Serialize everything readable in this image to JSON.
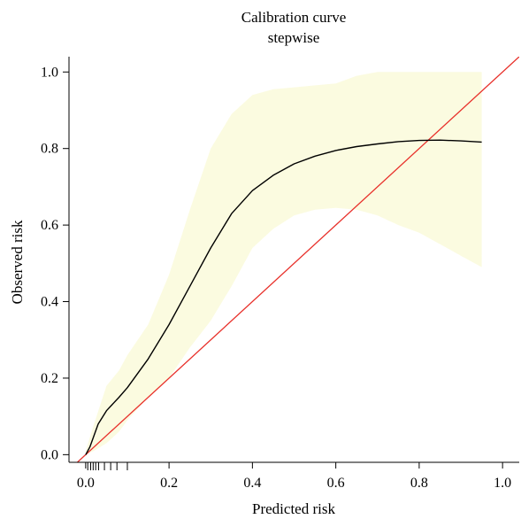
{
  "chart_data": {
    "type": "line",
    "title": "Calibration curve",
    "subtitle": "stepwise",
    "xlabel": "Predicted risk",
    "ylabel": "Observed risk",
    "xlim": [
      -0.04,
      1.04
    ],
    "ylim": [
      -0.02,
      1.04
    ],
    "x_ticks": [
      0.0,
      0.2,
      0.4,
      0.6,
      0.8,
      1.0
    ],
    "x_tick_labels": [
      "0.0",
      "0.2",
      "0.4",
      "0.6",
      "0.8",
      "1.0"
    ],
    "y_ticks": [
      0.0,
      0.2,
      0.4,
      0.6,
      0.8,
      1.0
    ],
    "y_tick_labels": [
      "0.0",
      "0.2",
      "0.4",
      "0.6",
      "0.8",
      "1.0"
    ],
    "grid": false,
    "colors": {
      "curve": "#000000",
      "reference": "#e8302a",
      "band": "#fbfbe0"
    },
    "series": [
      {
        "type": "line",
        "x": [
          0.0,
          0.01,
          0.02,
          0.03,
          0.05,
          0.08,
          0.1,
          0.15,
          0.2,
          0.25,
          0.3,
          0.35,
          0.4,
          0.45,
          0.5,
          0.55,
          0.6,
          0.65,
          0.7,
          0.75,
          0.8,
          0.85,
          0.9,
          0.95
        ],
        "y": [
          0.0,
          0.02,
          0.05,
          0.08,
          0.115,
          0.15,
          0.175,
          0.25,
          0.34,
          0.44,
          0.54,
          0.63,
          0.69,
          0.73,
          0.76,
          0.78,
          0.795,
          0.805,
          0.812,
          0.818,
          0.821,
          0.822,
          0.82,
          0.817
        ]
      },
      {
        "type": "line",
        "x": [
          -0.04,
          1.04
        ],
        "y": [
          -0.04,
          1.04
        ]
      },
      {
        "type": "band",
        "x": [
          0.0,
          0.02,
          0.05,
          0.08,
          0.1,
          0.15,
          0.2,
          0.25,
          0.3,
          0.35,
          0.4,
          0.45,
          0.5,
          0.55,
          0.6,
          0.65,
          0.7,
          0.75,
          0.8,
          0.85,
          0.9,
          0.95
        ],
        "upper": [
          0.01,
          0.08,
          0.18,
          0.22,
          0.26,
          0.34,
          0.47,
          0.64,
          0.8,
          0.89,
          0.94,
          0.955,
          0.96,
          0.965,
          0.97,
          0.99,
          1.0,
          1.0,
          1.0,
          1.0,
          1.0,
          1.0
        ],
        "lower": [
          0.0,
          0.01,
          0.03,
          0.06,
          0.09,
          0.15,
          0.2,
          0.28,
          0.35,
          0.44,
          0.54,
          0.59,
          0.625,
          0.64,
          0.645,
          0.64,
          0.625,
          0.6,
          0.58,
          0.55,
          0.52,
          0.49
        ]
      }
    ],
    "rug_x": [
      0.005,
      0.012,
      0.018,
      0.024,
      0.031,
      0.045,
      0.06,
      0.075,
      0.1
    ]
  }
}
